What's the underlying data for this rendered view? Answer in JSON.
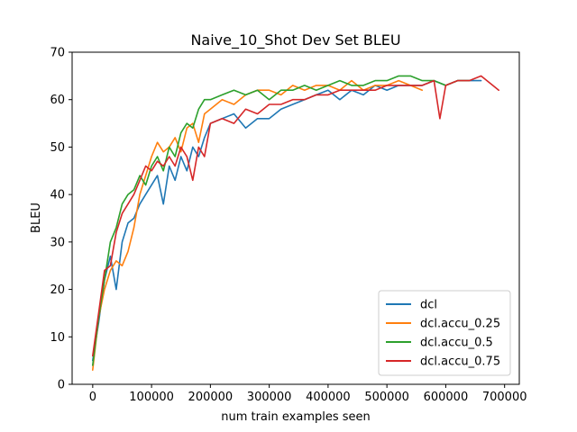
{
  "chart_data": {
    "type": "line",
    "title": "Naive_10_Shot Dev Set BLEU",
    "xlabel": "num train examples seen",
    "ylabel": "BLEU",
    "xlim": [
      -35000,
      725000
    ],
    "ylim": [
      0,
      70
    ],
    "xticks": [
      0,
      100000,
      200000,
      300000,
      400000,
      500000,
      600000,
      700000
    ],
    "xtick_labels": [
      "0",
      "100000",
      "200000",
      "300000",
      "400000",
      "500000",
      "600000",
      "700000"
    ],
    "yticks": [
      0,
      10,
      20,
      30,
      40,
      50,
      60,
      70
    ],
    "ytick_labels": [
      "0",
      "10",
      "20",
      "30",
      "40",
      "50",
      "60",
      "70"
    ],
    "grid": false,
    "legend": "lower-right",
    "series": [
      {
        "name": "dcl",
        "color": "#1f77b4",
        "x": [
          0,
          10000,
          20000,
          30000,
          40000,
          50000,
          60000,
          70000,
          80000,
          90000,
          100000,
          110000,
          120000,
          130000,
          140000,
          150000,
          160000,
          170000,
          180000,
          190000,
          200000,
          220000,
          240000,
          260000,
          280000,
          300000,
          320000,
          340000,
          360000,
          380000,
          400000,
          420000,
          440000,
          460000,
          480000,
          500000,
          520000,
          540000,
          560000,
          580000,
          600000,
          620000,
          640000,
          660000
        ],
        "y": [
          5,
          13,
          22,
          27,
          20,
          30,
          34,
          35,
          38,
          40,
          42,
          44,
          38,
          46,
          43,
          48,
          45,
          50,
          48,
          52,
          55,
          56,
          57,
          54,
          56,
          56,
          58,
          59,
          60,
          61,
          62,
          60,
          62,
          61,
          63,
          62,
          63,
          63,
          63,
          64,
          63,
          64,
          64,
          64
        ]
      },
      {
        "name": "dcl.accu_0.25",
        "color": "#ff7f0e",
        "x": [
          0,
          10000,
          20000,
          30000,
          40000,
          50000,
          60000,
          70000,
          80000,
          90000,
          100000,
          110000,
          120000,
          130000,
          140000,
          150000,
          160000,
          170000,
          180000,
          190000,
          200000,
          220000,
          240000,
          260000,
          280000,
          300000,
          320000,
          340000,
          360000,
          380000,
          400000,
          420000,
          440000,
          460000,
          480000,
          500000,
          520000,
          540000,
          560000
        ],
        "y": [
          3,
          14,
          20,
          24,
          26,
          25,
          28,
          33,
          40,
          44,
          48,
          51,
          49,
          50,
          52,
          49,
          54,
          55,
          51,
          57,
          58,
          60,
          59,
          61,
          62,
          62,
          61,
          63,
          62,
          63,
          63,
          62,
          64,
          62,
          63,
          63,
          64,
          63,
          62
        ]
      },
      {
        "name": "dcl.accu_0.5",
        "color": "#2ca02c",
        "x": [
          0,
          10000,
          20000,
          30000,
          40000,
          50000,
          60000,
          70000,
          80000,
          90000,
          100000,
          110000,
          120000,
          130000,
          140000,
          150000,
          160000,
          170000,
          180000,
          190000,
          200000,
          220000,
          240000,
          260000,
          280000,
          300000,
          320000,
          340000,
          360000,
          380000,
          400000,
          420000,
          440000,
          460000,
          480000,
          500000,
          520000,
          540000,
          560000,
          580000,
          600000,
          620000,
          640000
        ],
        "y": [
          4,
          14,
          22,
          30,
          33,
          38,
          40,
          41,
          44,
          42,
          46,
          48,
          45,
          50,
          48,
          53,
          55,
          54,
          58,
          60,
          60,
          61,
          62,
          61,
          62,
          60,
          62,
          62,
          63,
          62,
          63,
          64,
          63,
          63,
          64,
          64,
          65,
          65,
          64,
          64,
          63,
          64,
          64
        ]
      },
      {
        "name": "dcl.accu_0.75",
        "color": "#d62728",
        "x": [
          0,
          10000,
          20000,
          30000,
          40000,
          50000,
          60000,
          70000,
          80000,
          90000,
          100000,
          110000,
          120000,
          130000,
          140000,
          150000,
          160000,
          170000,
          180000,
          190000,
          200000,
          220000,
          240000,
          260000,
          280000,
          300000,
          320000,
          340000,
          360000,
          380000,
          400000,
          420000,
          440000,
          460000,
          480000,
          500000,
          520000,
          540000,
          560000,
          580000,
          590000,
          600000,
          620000,
          640000,
          660000,
          680000,
          690000
        ],
        "y": [
          6,
          15,
          24,
          25,
          32,
          36,
          38,
          40,
          43,
          46,
          45,
          47,
          46,
          48,
          46,
          50,
          48,
          43,
          50,
          48,
          55,
          56,
          55,
          58,
          57,
          59,
          59,
          60,
          60,
          61,
          61,
          62,
          62,
          62,
          62,
          63,
          63,
          63,
          63,
          64,
          56,
          63,
          64,
          64,
          65,
          63,
          62
        ]
      }
    ]
  }
}
